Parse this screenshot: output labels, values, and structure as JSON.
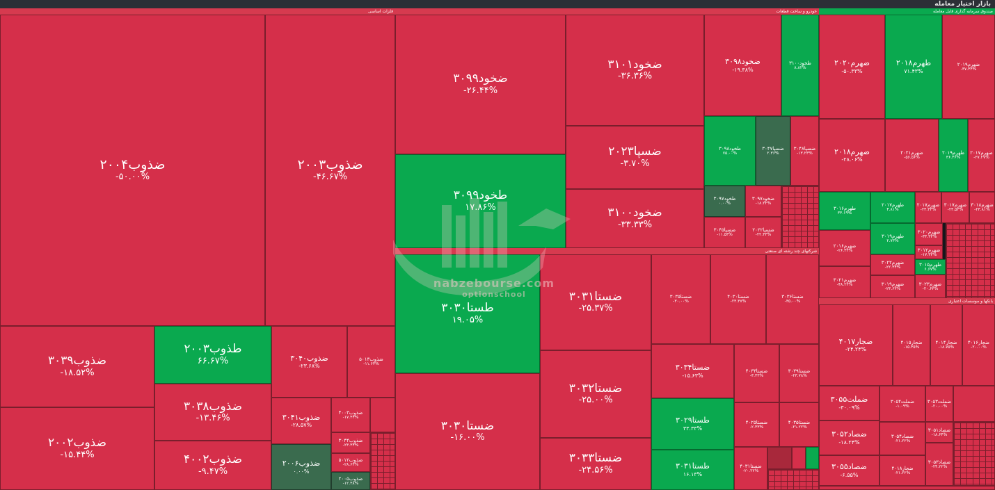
{
  "title": "بازار اختیار معامله",
  "colors": {
    "negative": "#d52f4a",
    "positive": "#0aa94f",
    "neutral": "#3a6b4e"
  },
  "sectors": [
    {
      "name": "فلزات اساسی"
    },
    {
      "name": "خودرو و ساخت قطعات"
    },
    {
      "name": "صندوق سرمایه گذاری قابل معامله"
    },
    {
      "name": "شرکتهای چند رشته ای صنعتی"
    },
    {
      "name": "بانکها و موسسات اعتباری"
    }
  ],
  "tiles": [
    {
      "sym": "ضذوب۲۰۰۴",
      "pct": "-۵۰.۰۰%"
    },
    {
      "sym": "ضذوب۲۰۰۳",
      "pct": "-۴۶.۶۷%"
    },
    {
      "sym": "ضذوب۳۰۳۹",
      "pct": "-۱۸.۵۲%"
    },
    {
      "sym": "طذوب۲۰۰۳",
      "pct": "۶۶.۶۷%"
    },
    {
      "sym": "ضذوب۳۰۳۸",
      "pct": "-۱۳.۴۶%"
    },
    {
      "sym": "ضذوب۲۰۰۲",
      "pct": "-۱۵.۴۴%"
    },
    {
      "sym": "ضذوب۴۰۰۲",
      "pct": "-۹.۴۷%"
    },
    {
      "sym": "ضذوب۳۰۴۰",
      "pct": "-۲۳.۶۸%"
    },
    {
      "sym": "ضذوب۵۰۱۳",
      "pct": "-۱۱.۶۳%"
    },
    {
      "sym": "ضذوب۳۰۴۱",
      "pct": "-۲۸.۵۷%"
    },
    {
      "sym": "ضذوب۴۰۰۳",
      "pct": "-۱۷.۴۳%"
    },
    {
      "sym": "ضذوب۳۰۴۴",
      "pct": "-۲۳.۳۳%"
    },
    {
      "sym": "ضذوب۵۰۱۲",
      "pct": "-۲۸.۶۳%"
    },
    {
      "sym": "ضذوب۲۰۰۶",
      "pct": "۰.۰۰%"
    },
    {
      "sym": "ضذوب۲۰۰۵",
      "pct": "-۱۲.۳۸%"
    },
    {
      "sym": "ضخود۳۰۹۹",
      "pct": "-۲۶.۴۴%"
    },
    {
      "sym": "طخود۳۰۹۹",
      "pct": "۱۷.۸۶%"
    },
    {
      "sym": "ضخود۳۱۰۱",
      "pct": "-۳۶.۳۶%"
    },
    {
      "sym": "ضسپا۲۰۲۳",
      "pct": "-۳.۷۰%"
    },
    {
      "sym": "ضخود۳۱۰۰",
      "pct": "-۳۳.۳۳%"
    },
    {
      "sym": "ضخود۳۰۹۸",
      "pct": "-۱۹.۳۸%"
    },
    {
      "sym": "طخود۳۱۰۰",
      "pct": "۸.۸۲%"
    },
    {
      "sym": "طخود۳۰۹۸",
      "pct": "۷۵.۰۰%"
    },
    {
      "sym": "ضسپا۳۰۴۷",
      "pct": "۲.۳۶%"
    },
    {
      "sym": "ضسپا۳۰۴۸",
      "pct": "-۱۳.۲۳%"
    },
    {
      "sym": "طخود۳۰۹۷",
      "pct": "۰.۰۰%"
    },
    {
      "sym": "ضخود۳۰۹۷",
      "pct": "-۱۸.۲۲%"
    },
    {
      "sym": "ضسپا۳۰۴۵",
      "pct": "-۱۱.۵۳%"
    },
    {
      "sym": "ضسپا۲۰۲۲",
      "pct": "-۲۲.۳۳%"
    },
    {
      "sym": "ضهرم۲۰۲۰",
      "pct": "-۵۰.۳۳%"
    },
    {
      "sym": "طهرم۲۰۱۸",
      "pct": "۷۱.۴۳%"
    },
    {
      "sym": "ضهرم۲۰۱۹",
      "pct": "-۳۷.۳۳%"
    },
    {
      "sym": "ضهرم۲۰۱۸",
      "pct": "-۲۸.۰۶%"
    },
    {
      "sym": "ضهرم۲۰۲۱",
      "pct": "-۵۶.۵۶%"
    },
    {
      "sym": "طهرم۲۰۱۹",
      "pct": "۳۶.۳۶%"
    },
    {
      "sym": "ضهرم۲۰۱۷",
      "pct": "-۲۷.۲۷%"
    },
    {
      "sym": "طهرم۳۰۱۶",
      "pct": "۳۳.۱۹%"
    },
    {
      "sym": "طهرم۲۰۱۷",
      "pct": "۴.۸۱%"
    },
    {
      "sym": "ضهرم۲۰۱۷",
      "pct": "-۲۳.۳۳%"
    },
    {
      "sym": "ضهرم۳۰۱۷",
      "pct": "-۲۳.۵۳%"
    },
    {
      "sym": "ضهرم۳۰۱۸",
      "pct": "-۲۳.۸۱%"
    },
    {
      "sym": "ضهرم۲۰۱۶",
      "pct": "-۲۶.۳۳%"
    },
    {
      "sym": "طهرم۳۰۱۹",
      "pct": "۲.۷۳%"
    },
    {
      "sym": "ضهرم۳۰۲۰",
      "pct": "-۳۳.۳۳%"
    },
    {
      "sym": "ضهرم۳۰۲۲",
      "pct": "-۲۲.۳۳%"
    },
    {
      "sym": "ضهرم۳۰۱۲",
      "pct": "-۱۷.۳۳%"
    },
    {
      "sym": "طهرم۳۰۱۵",
      "pct": "۶.۶۷%"
    },
    {
      "sym": "ضهرم۳۰۲۱",
      "pct": "-۴۸.۲۳%"
    },
    {
      "sym": "ضهرم۳۰۱۹",
      "pct": "-۲۳.۶۳%"
    },
    {
      "sym": "ضهرم۳۰۲۳",
      "pct": "-۲۰.۶۳%"
    },
    {
      "sym": "طستا۳۰۳۰",
      "pct": "۱۹.۰۵%"
    },
    {
      "sym": "ضستا۳۰۳۱",
      "pct": "-۲۵.۳۷%"
    },
    {
      "sym": "ضستا۳۰۳۰",
      "pct": "-۱۶.۰۰%"
    },
    {
      "sym": "ضستا۳۰۳۲",
      "pct": "-۲۵.۰۰%"
    },
    {
      "sym": "ضستا۳۰۳۳",
      "pct": "-۲۴.۵۶%"
    },
    {
      "sym": "ضستا۳۰۳۵",
      "pct": "-۳۰.۰۰%"
    },
    {
      "sym": "ضستا۴۰۳۰",
      "pct": "-۲۳.۳۷%"
    },
    {
      "sym": "ضستا۳۰۳۶",
      "pct": "-۳۵.۰۰%"
    },
    {
      "sym": "ضستا۳۰۳۴",
      "pct": "-۱۵.۶۳%"
    },
    {
      "sym": "ضستا۴۰۳۳",
      "pct": "-۳.۳۳%"
    },
    {
      "sym": "ضستا۳۰۳۹",
      "pct": "-۲۳.۷۸%"
    },
    {
      "sym": "طستا۳۰۲۹",
      "pct": "۳۳.۳۳%"
    },
    {
      "sym": "ضستا۴۰۲۵",
      "pct": "-۲.۳۳%"
    },
    {
      "sym": "ضستا۴۰۳۵",
      "pct": "-۲۱.۲۲%"
    },
    {
      "sym": "طستا۳۰۳۱",
      "pct": "۱۶.۱۳%"
    },
    {
      "sym": "ضستا۴۰۳۱",
      "pct": "-۲۰.۲۲%"
    },
    {
      "sym": "ضجار۴۰۱۷",
      "pct": "-۲۴.۲۴%"
    },
    {
      "sym": "ضجار۴۰۱۵",
      "pct": "-۱۵.۳۵%"
    },
    {
      "sym": "ضجار۴۰۱۴",
      "pct": "-۱۸.۷۵%"
    },
    {
      "sym": "ضجار۴۰۱۶",
      "pct": "-۲۰.۰۰%"
    },
    {
      "sym": "ضملت۳۰۵۵",
      "pct": "-۳۰.۰۹%"
    },
    {
      "sym": "ضملت۳۰۵۴",
      "pct": "-۱.۰۹%"
    },
    {
      "sym": "ضملت۳۰۵۳",
      "pct": "-۲۰.۰۰%"
    },
    {
      "sym": "ضصاد۳۰۵۲",
      "pct": "-۱۸.۲۴%"
    },
    {
      "sym": "ضصاد۳۰۵۴",
      "pct": "-۲۱.۲۲%"
    },
    {
      "sym": "ضصاد۳۰۵۱",
      "pct": "-۱۸.۶۴%"
    },
    {
      "sym": "ضصاد۳۰۵۵",
      "pct": "-۶.۵۵%"
    },
    {
      "sym": "ضجار۴۰۱۸",
      "pct": "-۲۱.۲۲%"
    },
    {
      "sym": "ضصاد۳۰۵۳",
      "pct": "-۲۴.۲۲%"
    }
  ],
  "watermark": {
    "brand": "nabzebourse.com",
    "sub": "optionschool"
  }
}
